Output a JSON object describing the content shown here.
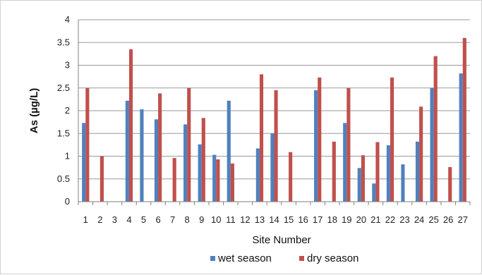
{
  "chart_data": {
    "type": "bar",
    "xlabel": "Site Number",
    "ylabel": "As (µg/L)",
    "ylim": [
      0,
      4
    ],
    "yticks": [
      "0",
      "0.5",
      "1",
      "1.5",
      "2",
      "2.5",
      "3",
      "3.5",
      "4"
    ],
    "grid": true,
    "legend_position": "bottom",
    "categories": [
      "1",
      "2",
      "3",
      "4",
      "5",
      "6",
      "7",
      "8",
      "9",
      "10",
      "11",
      "12",
      "13",
      "14",
      "15",
      "16",
      "17",
      "18",
      "19",
      "20",
      "21",
      "22",
      "23",
      "24",
      "25",
      "26",
      "27"
    ],
    "series": [
      {
        "name": "wet season",
        "color": "#4f81bd",
        "values": [
          1.73,
          0,
          0,
          2.22,
          2.03,
          1.81,
          0,
          1.7,
          1.26,
          1.03,
          2.22,
          0,
          1.17,
          1.5,
          0,
          0,
          2.45,
          0,
          1.73,
          0.74,
          0.4,
          1.24,
          0.82,
          1.32,
          2.5,
          0,
          2.82
        ]
      },
      {
        "name": "dry season",
        "color": "#c0504d",
        "values": [
          2.5,
          1.0,
          0,
          3.35,
          0,
          2.38,
          0.96,
          2.5,
          1.84,
          0.93,
          0.84,
          0,
          2.8,
          2.45,
          1.09,
          0,
          2.73,
          1.32,
          2.5,
          1.02,
          1.31,
          2.73,
          0,
          2.09,
          3.2,
          0.76,
          3.6
        ]
      }
    ]
  }
}
